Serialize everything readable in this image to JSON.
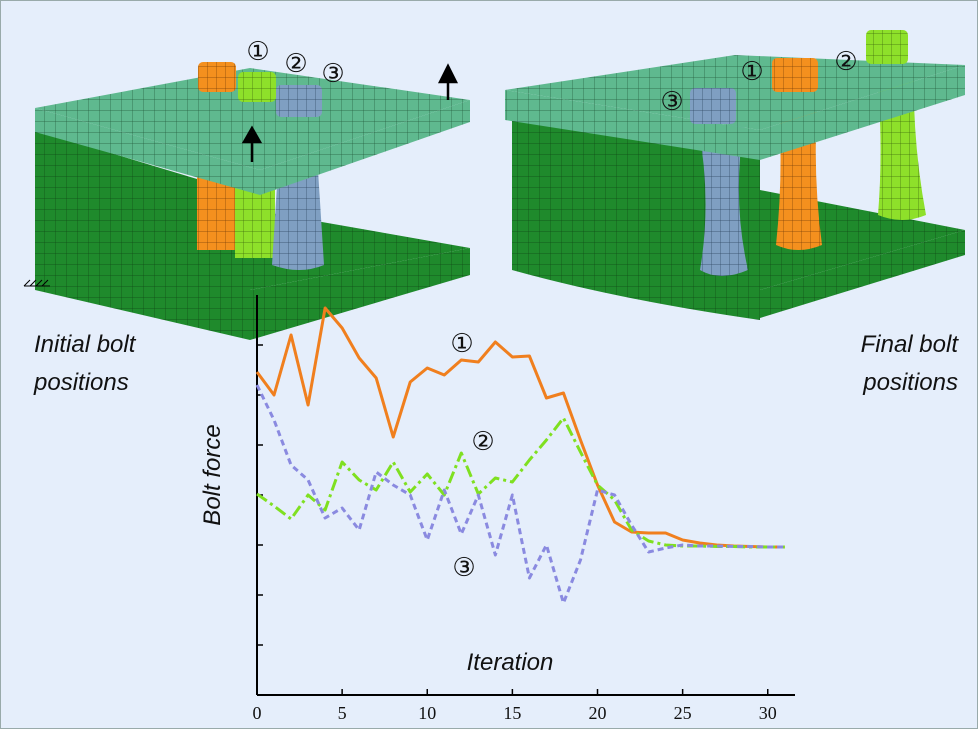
{
  "chart_data": {
    "type": "line",
    "x_label": "Iteration",
    "y_label": "Bolt force",
    "left_caption": [
      "Initial bolt",
      "positions"
    ],
    "right_caption": [
      "Final bolt",
      "positions"
    ],
    "x": [
      0,
      1,
      2,
      3,
      4,
      5,
      6,
      7,
      8,
      9,
      10,
      11,
      12,
      13,
      14,
      15,
      16,
      17,
      18,
      19,
      20,
      21,
      22,
      23,
      24,
      25,
      26,
      27,
      28,
      29,
      30,
      31
    ],
    "xlim": [
      0,
      31.6
    ],
    "xticks": [
      0,
      5,
      10,
      15,
      20,
      25,
      30
    ],
    "ylim": [
      0,
      8
    ],
    "yticks": [
      1,
      2,
      3,
      4,
      5,
      6,
      7
    ],
    "ytick_labels": false,
    "series": [
      {
        "name": "①",
        "color": "#f07f1e",
        "line_style": "solid",
        "values": [
          6.46,
          6.0,
          7.2,
          5.8,
          7.74,
          7.34,
          6.74,
          6.34,
          5.16,
          6.26,
          6.54,
          6.4,
          6.7,
          6.66,
          7.06,
          6.76,
          6.78,
          5.94,
          6.04,
          5.1,
          4.2,
          3.46,
          3.26,
          3.24,
          3.24,
          3.1,
          3.04,
          3.0,
          2.98,
          2.97,
          2.96,
          2.96
        ]
      },
      {
        "name": "②",
        "color": "#7fe020",
        "line_style": "dash-dot",
        "values": [
          4.02,
          3.78,
          3.52,
          4.0,
          3.7,
          4.66,
          4.3,
          4.1,
          4.66,
          4.06,
          4.42,
          4.0,
          4.84,
          4.02,
          4.34,
          4.26,
          4.7,
          5.1,
          5.54,
          4.86,
          4.2,
          3.9,
          3.3,
          3.08,
          3.0,
          2.98,
          2.98,
          2.97,
          2.97,
          2.96,
          2.96,
          2.96
        ]
      },
      {
        "name": "③",
        "color": "#8a8ae0",
        "line_style": "dashed",
        "values": [
          6.2,
          5.5,
          4.6,
          4.3,
          3.54,
          3.74,
          3.3,
          4.46,
          4.2,
          4.0,
          3.1,
          4.1,
          3.22,
          4.0,
          2.8,
          4.0,
          2.34,
          3.0,
          1.84,
          2.7,
          4.1,
          4.0,
          3.4,
          2.86,
          2.94,
          3.0,
          2.98,
          2.98,
          2.97,
          2.97,
          2.96,
          2.96
        ]
      }
    ]
  }
}
